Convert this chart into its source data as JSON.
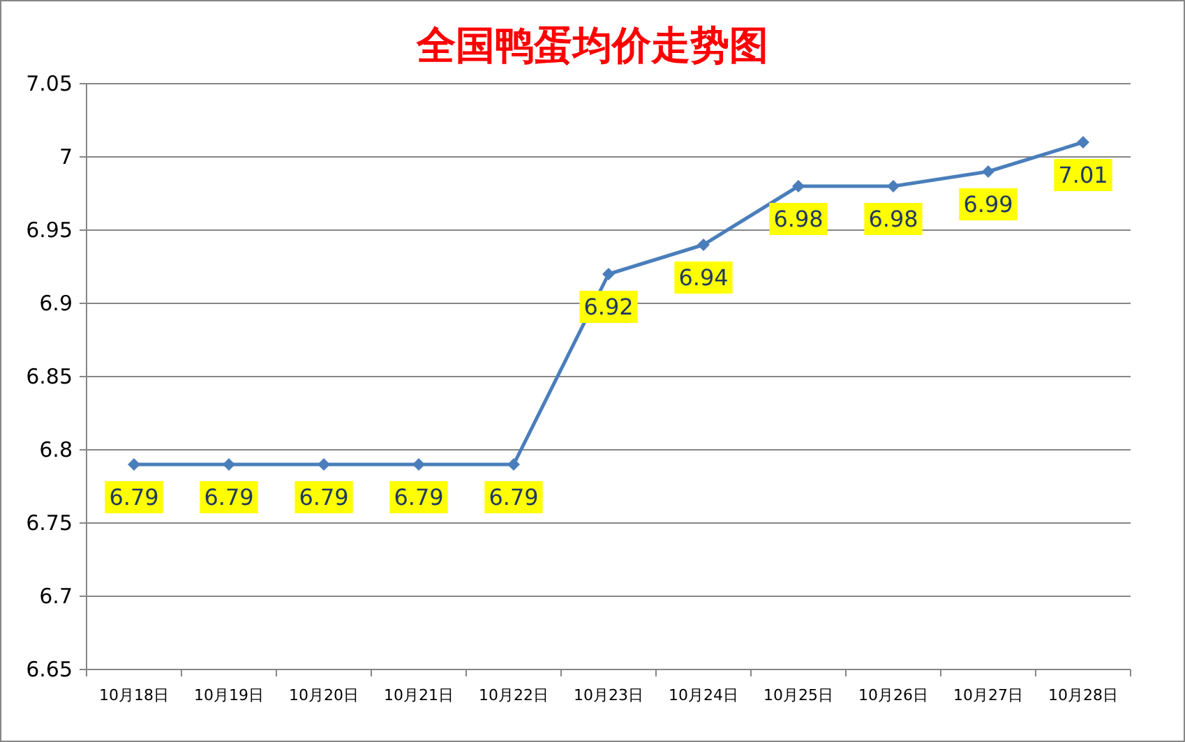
{
  "chart_data": {
    "type": "line",
    "title": "全国鸭蛋均价走势图",
    "categories": [
      "10月18日",
      "10月19日",
      "10月20日",
      "10月21日",
      "10月22日",
      "10月23日",
      "10月24日",
      "10月25日",
      "10月26日",
      "10月27日",
      "10月28日"
    ],
    "series": [
      {
        "color": "#4a7ebb",
        "values": [
          6.79,
          6.79,
          6.79,
          6.79,
          6.79,
          6.92,
          6.94,
          6.98,
          6.98,
          6.99,
          7.01
        ]
      }
    ],
    "ylim": [
      6.65,
      7.05
    ],
    "yticks": [
      6.65,
      6.7,
      6.75,
      6.8,
      6.85,
      6.9,
      6.95,
      7,
      7.05
    ],
    "grid": "y",
    "marker": "diamond",
    "data_labels": true
  }
}
